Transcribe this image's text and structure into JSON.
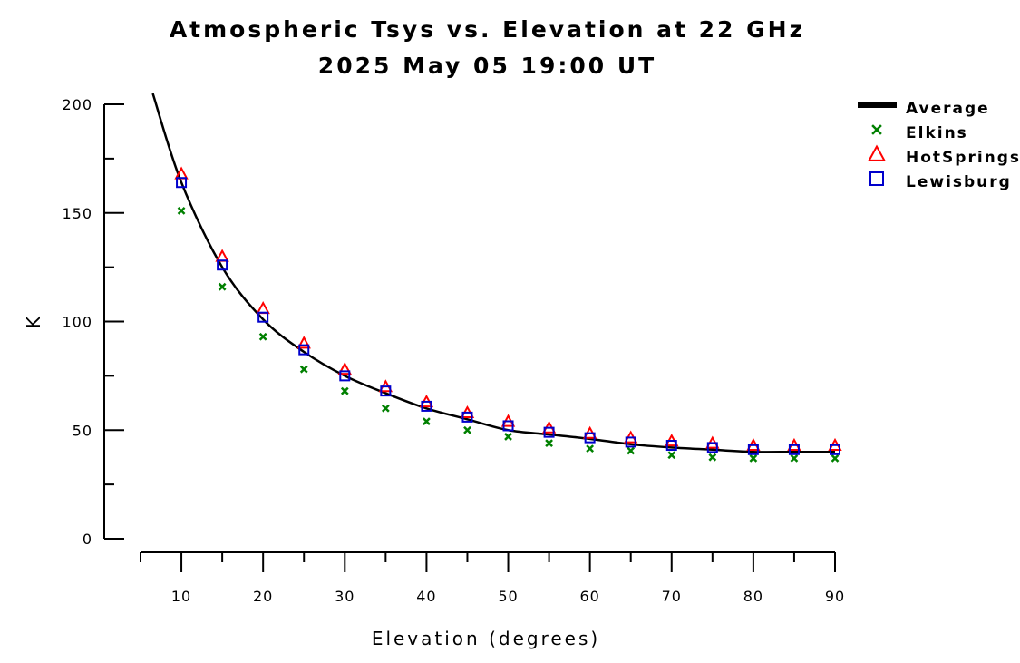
{
  "chart_data": {
    "type": "line",
    "title": "Atmospheric Tsys vs. Elevation at 22 GHz",
    "subtitle": "2025 May 05 19:00 UT",
    "xlabel": "Elevation (degrees)",
    "ylabel": "K",
    "xlim": [
      5,
      90
    ],
    "ylim": [
      0,
      200
    ],
    "xticks": [
      10,
      20,
      30,
      40,
      50,
      60,
      70,
      80,
      90
    ],
    "yticks": [
      0,
      50,
      100,
      150,
      200
    ],
    "legend_position": "top-right",
    "average": {
      "name": "Average",
      "color": "#000000",
      "x": [
        6.5,
        10,
        15,
        20,
        25,
        30,
        35,
        40,
        45,
        50,
        55,
        60,
        65,
        70,
        75,
        80,
        85,
        90
      ],
      "y": [
        205,
        164,
        125,
        101,
        86,
        75,
        67,
        60,
        55,
        50,
        48,
        46,
        43.5,
        42,
        41,
        40,
        40,
        40
      ]
    },
    "series": [
      {
        "name": "Elkins",
        "marker": "x",
        "color": "#008000",
        "x": [
          10,
          15,
          20,
          25,
          30,
          35,
          40,
          45,
          50,
          55,
          60,
          65,
          70,
          75,
          80,
          85,
          90
        ],
        "y": [
          151,
          116,
          93,
          78,
          68,
          60,
          54,
          50,
          47,
          44,
          41.5,
          40.5,
          38.5,
          37.5,
          37,
          37,
          37
        ]
      },
      {
        "name": "HotSprings",
        "marker": "triangle",
        "color": "#ff0000",
        "x": [
          10,
          15,
          20,
          25,
          30,
          35,
          40,
          45,
          50,
          55,
          60,
          65,
          70,
          75,
          80,
          85,
          90
        ],
        "y": [
          168,
          130,
          106,
          90,
          78,
          70,
          63,
          58,
          54,
          51,
          48.5,
          46.5,
          45,
          44,
          43,
          43,
          43
        ]
      },
      {
        "name": "Lewisburg",
        "marker": "square",
        "color": "#0000cc",
        "x": [
          10,
          15,
          20,
          25,
          30,
          35,
          40,
          45,
          50,
          55,
          60,
          65,
          70,
          75,
          80,
          85,
          90
        ],
        "y": [
          164,
          126,
          102,
          87,
          75,
          68,
          61,
          56,
          52,
          49,
          46.5,
          44.5,
          43,
          42,
          41,
          41,
          41
        ]
      }
    ]
  }
}
